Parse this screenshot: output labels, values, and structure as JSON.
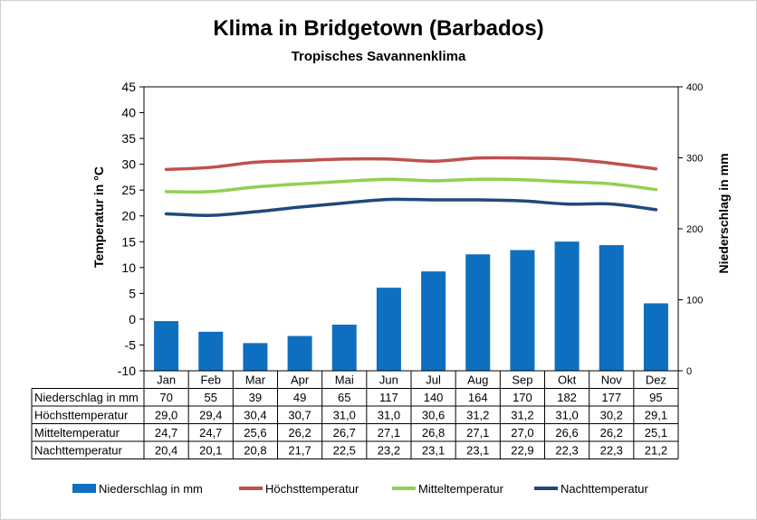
{
  "title": "Klima in Bridgetown (Barbados)",
  "subtitle": "Tropisches Savannenklima",
  "chart_data": {
    "type": "bar",
    "title": "Klima in Bridgetown (Barbados)",
    "subtitle": "Tropisches Savannenklima",
    "categories": [
      "Jan",
      "Feb",
      "Mar",
      "Apr",
      "Mai",
      "Jun",
      "Jul",
      "Aug",
      "Sep",
      "Okt",
      "Nov",
      "Dez"
    ],
    "y_left": {
      "label": "Temperatur in °C",
      "lim": [
        -10,
        45
      ],
      "ticks": [
        -10,
        -5,
        0,
        5,
        10,
        15,
        20,
        25,
        30,
        35,
        40,
        45
      ]
    },
    "y_right": {
      "label": "Niederschlag in mm",
      "lim": [
        0,
        400
      ],
      "ticks": [
        0,
        100,
        200,
        300,
        400
      ]
    },
    "grid": false,
    "legend_position": "bottom",
    "series": [
      {
        "name": "Niederschlag in mm",
        "type": "bar",
        "axis": "right",
        "color": "#0e6fc0",
        "values": [
          70,
          55,
          39,
          49,
          65,
          117,
          140,
          164,
          170,
          182,
          177,
          95
        ],
        "labels": [
          "70",
          "55",
          "39",
          "49",
          "65",
          "117",
          "140",
          "164",
          "170",
          "182",
          "177",
          "95"
        ]
      },
      {
        "name": "Höchsttemperatur",
        "type": "line",
        "axis": "left",
        "color": "#c0504d",
        "values": [
          29.0,
          29.4,
          30.4,
          30.7,
          31.0,
          31.0,
          30.6,
          31.2,
          31.2,
          31.0,
          30.2,
          29.1
        ],
        "labels": [
          "29,0",
          "29,4",
          "30,4",
          "30,7",
          "31,0",
          "31,0",
          "30,6",
          "31,2",
          "31,2",
          "31,0",
          "30,2",
          "29,1"
        ]
      },
      {
        "name": "Mitteltemperatur",
        "type": "line",
        "axis": "left",
        "color": "#92d050",
        "values": [
          24.7,
          24.7,
          25.6,
          26.2,
          26.7,
          27.1,
          26.8,
          27.1,
          27.0,
          26.6,
          26.2,
          25.1
        ],
        "labels": [
          "24,7",
          "24,7",
          "25,6",
          "26,2",
          "26,7",
          "27,1",
          "26,8",
          "27,1",
          "27,0",
          "26,6",
          "26,2",
          "25,1"
        ]
      },
      {
        "name": "Nachttemperatur",
        "type": "line",
        "axis": "left",
        "color": "#1f497d",
        "values": [
          20.4,
          20.1,
          20.8,
          21.7,
          22.5,
          23.2,
          23.1,
          23.1,
          22.9,
          22.3,
          22.3,
          21.2
        ],
        "labels": [
          "20,4",
          "20,1",
          "20,8",
          "21,7",
          "22,5",
          "23,2",
          "23,1",
          "23,1",
          "22,9",
          "22,3",
          "22,3",
          "21,2"
        ]
      }
    ]
  }
}
